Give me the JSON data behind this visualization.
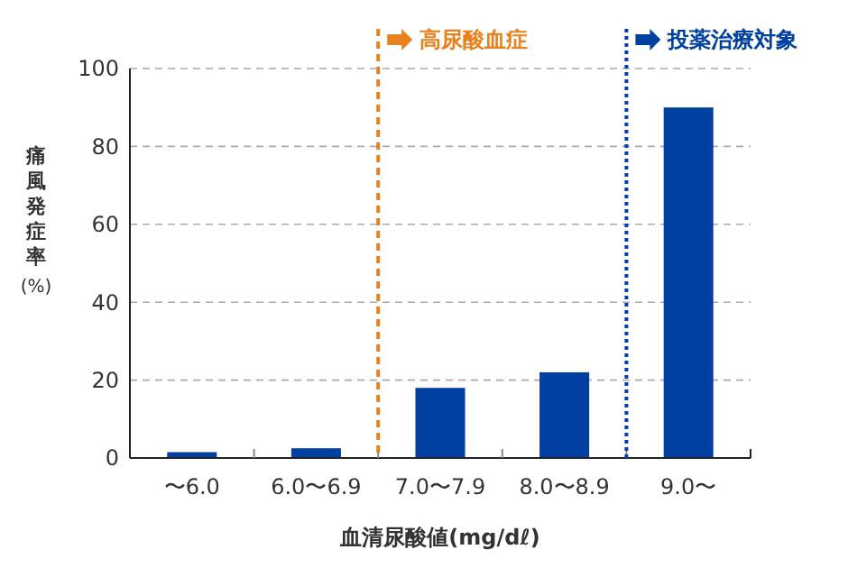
{
  "chart_data": {
    "type": "bar",
    "categories": [
      "〜6.0",
      "6.0〜6.9",
      "7.0〜7.9",
      "8.0〜8.9",
      "9.0〜"
    ],
    "values": [
      1.5,
      2.5,
      18,
      22,
      90
    ],
    "color": "#0040a0",
    "ylim": [
      0,
      100
    ],
    "yticks": [
      0,
      20,
      40,
      60,
      80,
      100
    ],
    "grid": "y",
    "xlabel": "血清尿酸値(mg/dℓ)",
    "ylabel": "痛風発症率(%)",
    "ref_lines": [
      {
        "axis": "x",
        "value": "7.0〜7.9",
        "label": "高尿酸血症",
        "color": "#e8821e",
        "line_style": "dashed"
      },
      {
        "axis": "x",
        "value": "9.0〜",
        "label": "投薬治療対象",
        "color": "#0040a0",
        "line_style": "dotted"
      }
    ]
  }
}
